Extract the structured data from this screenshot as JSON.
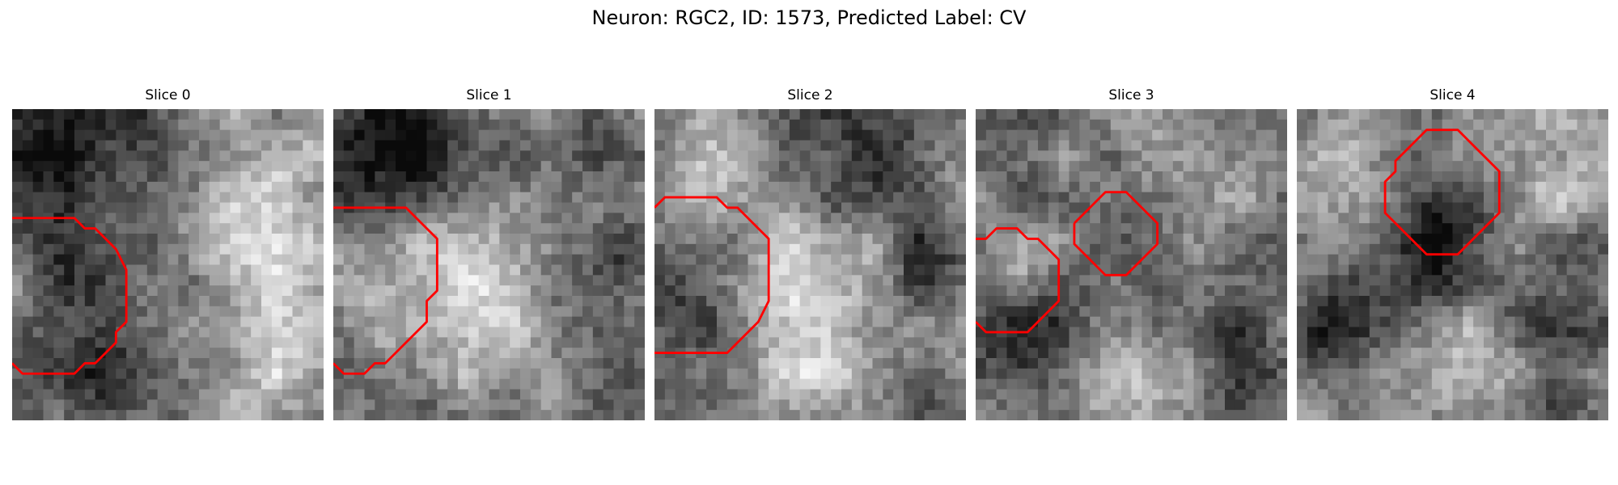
{
  "figure": {
    "title": "Neuron: RGC2, ID: 1573, Predicted Label: CV",
    "contour_color": "#ff0000",
    "panels": [
      {
        "title": "Slice 0",
        "seed": 11,
        "blobs": [
          [
            5,
            4,
            9,
            -0.38
          ],
          [
            10,
            22,
            9,
            -0.34
          ],
          [
            24,
            6,
            9,
            0.22
          ],
          [
            24,
            22,
            10,
            0.32
          ],
          [
            15,
            11,
            7,
            0.1
          ],
          [
            3,
            24,
            4,
            -0.1
          ],
          [
            18,
            3,
            5,
            -0.12
          ]
        ],
        "outline": [
          [
            0,
            10.5
          ],
          [
            6,
            10.5
          ],
          [
            7,
            11.5
          ],
          [
            8,
            11.5
          ],
          [
            10,
            13.5
          ],
          [
            11,
            15.5
          ],
          [
            11,
            20.5
          ],
          [
            10,
            21.5
          ],
          [
            10,
            22.5
          ],
          [
            9,
            23.5
          ],
          [
            8,
            24.5
          ],
          [
            7,
            24.5
          ],
          [
            6,
            25.5
          ],
          [
            1,
            25.5
          ],
          [
            0,
            24.5
          ]
        ]
      },
      {
        "title": "Slice 1",
        "seed": 23,
        "blobs": [
          [
            4,
            5,
            6,
            -0.4
          ],
          [
            8,
            1,
            6,
            -0.3
          ],
          [
            14,
            14,
            8,
            0.33
          ],
          [
            4,
            18,
            6,
            0.18
          ],
          [
            22,
            4,
            7,
            -0.15
          ],
          [
            27,
            14,
            5,
            -0.35
          ],
          [
            18,
            25,
            7,
            0.12
          ],
          [
            25,
            26,
            6,
            -0.05
          ],
          [
            4,
            26,
            4,
            -0.12
          ]
        ],
        "outline": [
          [
            0,
            9.5
          ],
          [
            7,
            9.5
          ],
          [
            9,
            11.5
          ],
          [
            10,
            12.5
          ],
          [
            10,
            17.5
          ],
          [
            9,
            18.5
          ],
          [
            9,
            20.5
          ],
          [
            7,
            22.5
          ],
          [
            6,
            23.5
          ],
          [
            5,
            24.5
          ],
          [
            4,
            24.5
          ],
          [
            3,
            25.5
          ],
          [
            1,
            25.5
          ],
          [
            0,
            24.5
          ]
        ]
      },
      {
        "title": "Slice 2",
        "seed": 37,
        "blobs": [
          [
            4,
            17,
            5,
            -0.25
          ],
          [
            14,
            17,
            8,
            0.28
          ],
          [
            20,
            4,
            7,
            -0.22
          ],
          [
            6,
            4,
            6,
            0.18
          ],
          [
            27,
            15,
            5,
            -0.3
          ],
          [
            16,
            26,
            8,
            0.15
          ],
          [
            26,
            27,
            5,
            -0.12
          ],
          [
            4,
            26,
            4,
            -0.1
          ]
        ],
        "outline": [
          [
            0,
            9.5
          ],
          [
            1,
            8.5
          ],
          [
            6,
            8.5
          ],
          [
            7,
            9.5
          ],
          [
            8,
            9.5
          ],
          [
            10,
            11.5
          ],
          [
            11,
            12.5
          ],
          [
            11,
            18.5
          ],
          [
            10,
            20.5
          ],
          [
            8,
            22.5
          ],
          [
            7,
            23.5
          ],
          [
            0,
            23.5
          ]
        ]
      },
      {
        "title": "Slice 3",
        "seed": 53,
        "blobs": [
          [
            5,
            21,
            5,
            -0.3
          ],
          [
            4,
            14,
            4,
            0.18
          ],
          [
            13,
            11,
            5,
            -0.12
          ],
          [
            18,
            5,
            6,
            0.15
          ],
          [
            15,
            25,
            7,
            0.2
          ],
          [
            25,
            24,
            6,
            -0.2
          ],
          [
            24,
            14,
            6,
            -0.12
          ],
          [
            27,
            5,
            5,
            0.15
          ],
          [
            3,
            4,
            5,
            -0.12
          ]
        ],
        "outline": [
          [
            [
              0,
              12.5
            ],
            [
              1,
              12.5
            ],
            [
              2,
              11.5
            ],
            [
              4,
              11.5
            ],
            [
              5,
              12.5
            ],
            [
              6,
              12.5
            ],
            [
              7,
              13.5
            ],
            [
              8,
              14.5
            ],
            [
              8,
              18.5
            ],
            [
              7,
              19.5
            ],
            [
              6,
              20.5
            ],
            [
              5,
              21.5
            ],
            [
              1,
              21.5
            ],
            [
              0,
              20.5
            ]
          ],
          [
            [
              9.5,
              11
            ],
            [
              9.5,
              13
            ],
            [
              10.5,
              14
            ],
            [
              11.5,
              15
            ],
            [
              12.5,
              16
            ],
            [
              14.5,
              16
            ],
            [
              15.5,
              15
            ],
            [
              16.5,
              14
            ],
            [
              17.5,
              13
            ],
            [
              17.5,
              11
            ],
            [
              16.5,
              10
            ],
            [
              15.5,
              9
            ],
            [
              14.5,
              8
            ],
            [
              12.5,
              8
            ],
            [
              11.5,
              9
            ],
            [
              10.5,
              10
            ],
            [
              9.5,
              11
            ]
          ]
        ]
      },
      {
        "title": "Slice 4",
        "seed": 71,
        "blobs": [
          [
            14,
            11,
            5,
            -0.32
          ],
          [
            14,
            13,
            9,
            -0.15
          ],
          [
            3,
            20,
            5,
            -0.3
          ],
          [
            15,
            25,
            6,
            0.28
          ],
          [
            5,
            6,
            6,
            0.22
          ],
          [
            25,
            6,
            6,
            0.22
          ],
          [
            26,
            18,
            5,
            -0.22
          ],
          [
            23,
            27,
            5,
            -0.15
          ],
          [
            7,
            28,
            4,
            -0.1
          ]
        ],
        "outline": [
          [
            8.5,
            8
          ],
          [
            8.5,
            7
          ],
          [
            9.5,
            6
          ],
          [
            9.5,
            5
          ],
          [
            10.5,
            4
          ],
          [
            11.5,
            3
          ],
          [
            12.5,
            2
          ],
          [
            15.5,
            2
          ],
          [
            16.5,
            3
          ],
          [
            17.5,
            4
          ],
          [
            18.5,
            5
          ],
          [
            19.5,
            6
          ],
          [
            19.5,
            10
          ],
          [
            18.5,
            11
          ],
          [
            17.5,
            12
          ],
          [
            16.5,
            13
          ],
          [
            15.5,
            14
          ],
          [
            12.5,
            14
          ],
          [
            11.5,
            13
          ],
          [
            10.5,
            12
          ],
          [
            9.5,
            11
          ],
          [
            8.5,
            10
          ],
          [
            8.5,
            8
          ]
        ]
      }
    ]
  }
}
